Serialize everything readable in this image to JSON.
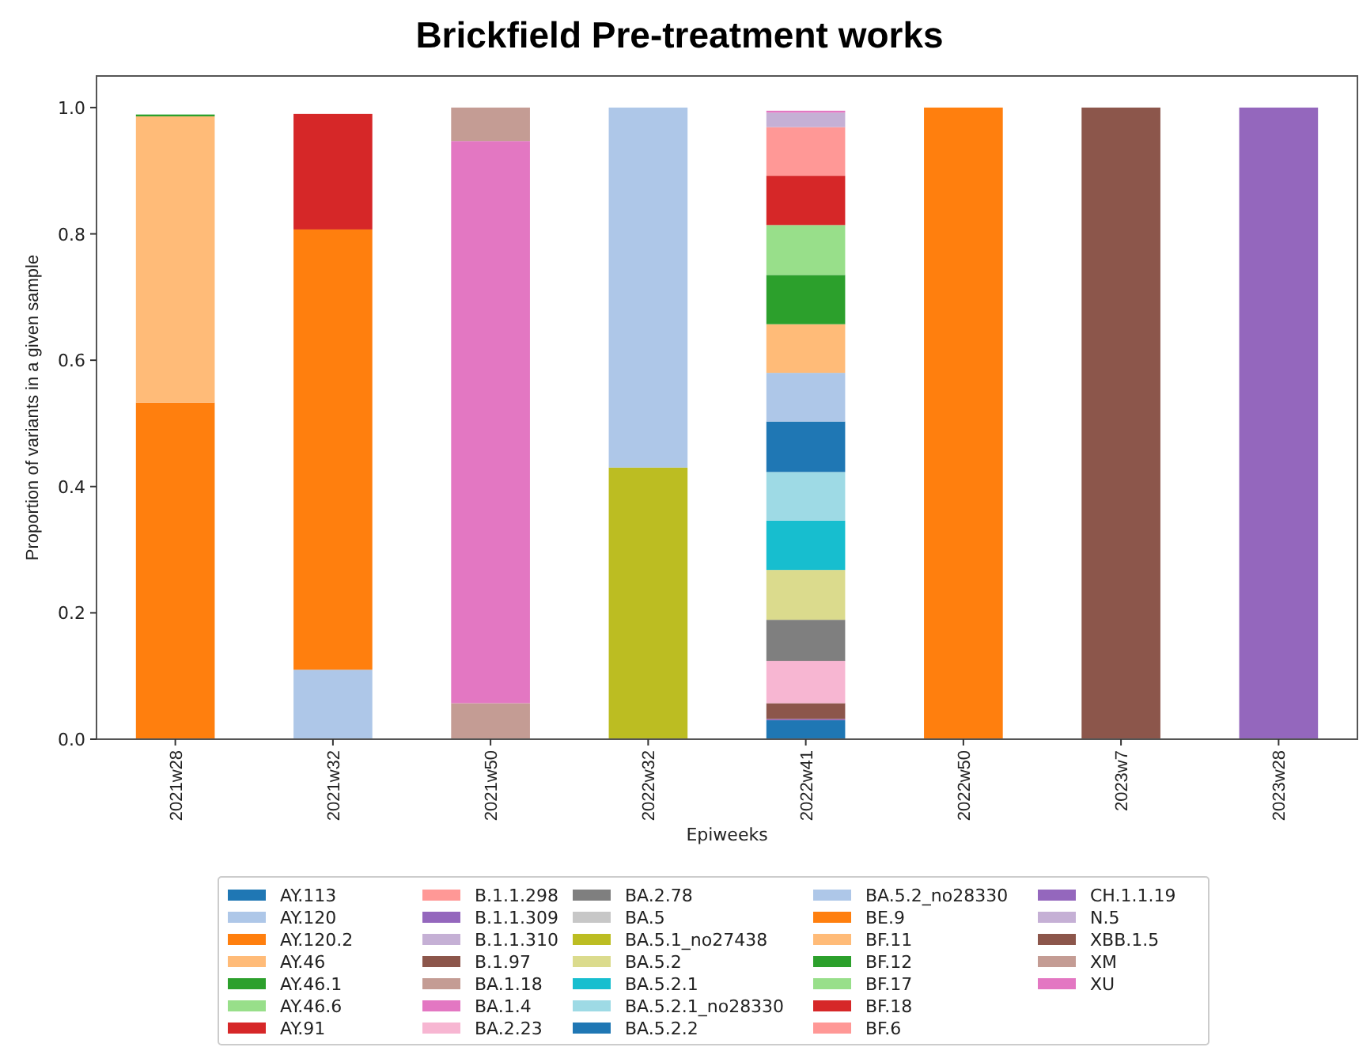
{
  "chart_data": {
    "type": "bar",
    "title": "Brickfield Pre-treatment works",
    "xlabel": "Epiweeks",
    "ylabel": "Proportion of variants in a given sample",
    "categories": [
      "2021w28",
      "2021w32",
      "2021w50",
      "2022w32",
      "2022w41",
      "2022w50",
      "2023w7",
      "2023w28"
    ],
    "stacked": true,
    "ylim": [
      0,
      1.05
    ],
    "yticks": [
      {
        "value": 0,
        "label": "0.0"
      },
      0.2,
      0.4,
      0.6,
      0.8,
      {
        "value": 1,
        "label": "1.0"
      }
    ],
    "grid": false,
    "legend": "bottom",
    "series": [
      {
        "name": "AY.113",
        "color": "#1f77b4",
        "values": [
          null,
          null,
          null,
          null,
          0.03,
          null,
          null,
          null
        ]
      },
      {
        "name": "AY.120",
        "color": "#aec7e8",
        "values": [
          null,
          0.11,
          null,
          null,
          null,
          null,
          null,
          null
        ]
      },
      {
        "name": "AY.120.2",
        "color": "#ff7f0e",
        "values": [
          0.533,
          0.697,
          null,
          null,
          null,
          null,
          null,
          null
        ]
      },
      {
        "name": "AY.46",
        "color": "#ffbb78",
        "values": [
          0.453,
          null,
          null,
          null,
          null,
          null,
          null,
          null
        ]
      },
      {
        "name": "AY.46.1",
        "color": "#2ca02c",
        "values": [
          0.003,
          null,
          null,
          null,
          null,
          null,
          null,
          null
        ]
      },
      {
        "name": "AY.46.6",
        "color": "#98df8a",
        "values": [
          null,
          null,
          null,
          null,
          null,
          null,
          null,
          null
        ]
      },
      {
        "name": "AY.91",
        "color": "#d62728",
        "values": [
          null,
          0.183,
          null,
          null,
          null,
          null,
          null,
          null
        ]
      },
      {
        "name": "B.1.1.298",
        "color": "#ff9896",
        "values": [
          null,
          null,
          null,
          null,
          null,
          null,
          null,
          null
        ]
      },
      {
        "name": "B.1.1.309",
        "color": "#9467bd",
        "values": [
          null,
          null,
          null,
          null,
          0.002,
          null,
          null,
          null
        ]
      },
      {
        "name": "B.1.1.310",
        "color": "#c5b0d5",
        "values": [
          null,
          null,
          null,
          null,
          null,
          null,
          null,
          null
        ]
      },
      {
        "name": "B.1.97",
        "color": "#8c564b",
        "values": [
          null,
          null,
          null,
          null,
          0.025,
          null,
          null,
          null
        ]
      },
      {
        "name": "BA.1.18",
        "color": "#c49c94",
        "values": [
          null,
          null,
          0.057,
          null,
          null,
          null,
          null,
          null
        ]
      },
      {
        "name": "BA.1.4",
        "color": "#e377c2",
        "values": [
          null,
          null,
          0.89,
          null,
          null,
          null,
          null,
          null
        ]
      },
      {
        "name": "BA.2.23",
        "color": "#f7b6d2",
        "values": [
          null,
          null,
          null,
          null,
          0.067,
          null,
          null,
          null
        ]
      },
      {
        "name": "BA.2.78",
        "color": "#7f7f7f",
        "values": [
          null,
          null,
          null,
          null,
          0.065,
          null,
          null,
          null
        ]
      },
      {
        "name": "BA.5",
        "color": "#c7c7c7",
        "values": [
          null,
          null,
          null,
          null,
          null,
          null,
          null,
          null
        ]
      },
      {
        "name": "BA.5.1_no27438",
        "color": "#bcbd22",
        "values": [
          null,
          null,
          null,
          0.43,
          null,
          null,
          null,
          null
        ]
      },
      {
        "name": "BA.5.2",
        "color": "#dbdb8d",
        "values": [
          null,
          null,
          null,
          null,
          0.079,
          null,
          null,
          null
        ]
      },
      {
        "name": "BA.5.2.1",
        "color": "#17becf",
        "values": [
          null,
          null,
          null,
          null,
          0.078,
          null,
          null,
          null
        ]
      },
      {
        "name": "BA.5.2.1_no28330",
        "color": "#9edae5",
        "values": [
          null,
          null,
          null,
          null,
          0.077,
          null,
          null,
          null
        ]
      },
      {
        "name": "BA.5.2.2",
        "color": "#1f77b4",
        "values": [
          null,
          null,
          null,
          null,
          0.08,
          null,
          null,
          null
        ]
      },
      {
        "name": "BA.5.2_no28330",
        "color": "#aec7e8",
        "values": [
          null,
          null,
          null,
          0.57,
          0.077,
          null,
          null,
          null
        ]
      },
      {
        "name": "BE.9",
        "color": "#ff7f0e",
        "values": [
          null,
          null,
          null,
          null,
          null,
          1.0,
          null,
          null
        ]
      },
      {
        "name": "BF.11",
        "color": "#ffbb78",
        "values": [
          null,
          null,
          null,
          null,
          0.077,
          null,
          null,
          null
        ]
      },
      {
        "name": "BF.12",
        "color": "#2ca02c",
        "values": [
          null,
          null,
          null,
          null,
          0.078,
          null,
          null,
          null
        ]
      },
      {
        "name": "BF.17",
        "color": "#98df8a",
        "values": [
          null,
          null,
          null,
          null,
          0.079,
          null,
          null,
          null
        ]
      },
      {
        "name": "BF.18",
        "color": "#d62728",
        "values": [
          null,
          null,
          null,
          null,
          0.078,
          null,
          null,
          null
        ]
      },
      {
        "name": "BF.6",
        "color": "#ff9896",
        "values": [
          null,
          null,
          null,
          null,
          0.077,
          null,
          null,
          null
        ]
      },
      {
        "name": "CH.1.1.19",
        "color": "#9467bd",
        "values": [
          null,
          null,
          null,
          null,
          null,
          null,
          null,
          1.0
        ]
      },
      {
        "name": "N.5",
        "color": "#c5b0d5",
        "values": [
          null,
          null,
          null,
          null,
          0.023,
          null,
          null,
          null
        ]
      },
      {
        "name": "XBB.1.5",
        "color": "#8c564b",
        "values": [
          null,
          null,
          null,
          null,
          null,
          null,
          1.0,
          null
        ]
      },
      {
        "name": "XM",
        "color": "#c49c94",
        "values": [
          null,
          null,
          0.053,
          null,
          null,
          null,
          null,
          null
        ]
      },
      {
        "name": "XU",
        "color": "#e377c2",
        "values": [
          null,
          null,
          null,
          null,
          0.003,
          null,
          null,
          null
        ]
      }
    ]
  }
}
